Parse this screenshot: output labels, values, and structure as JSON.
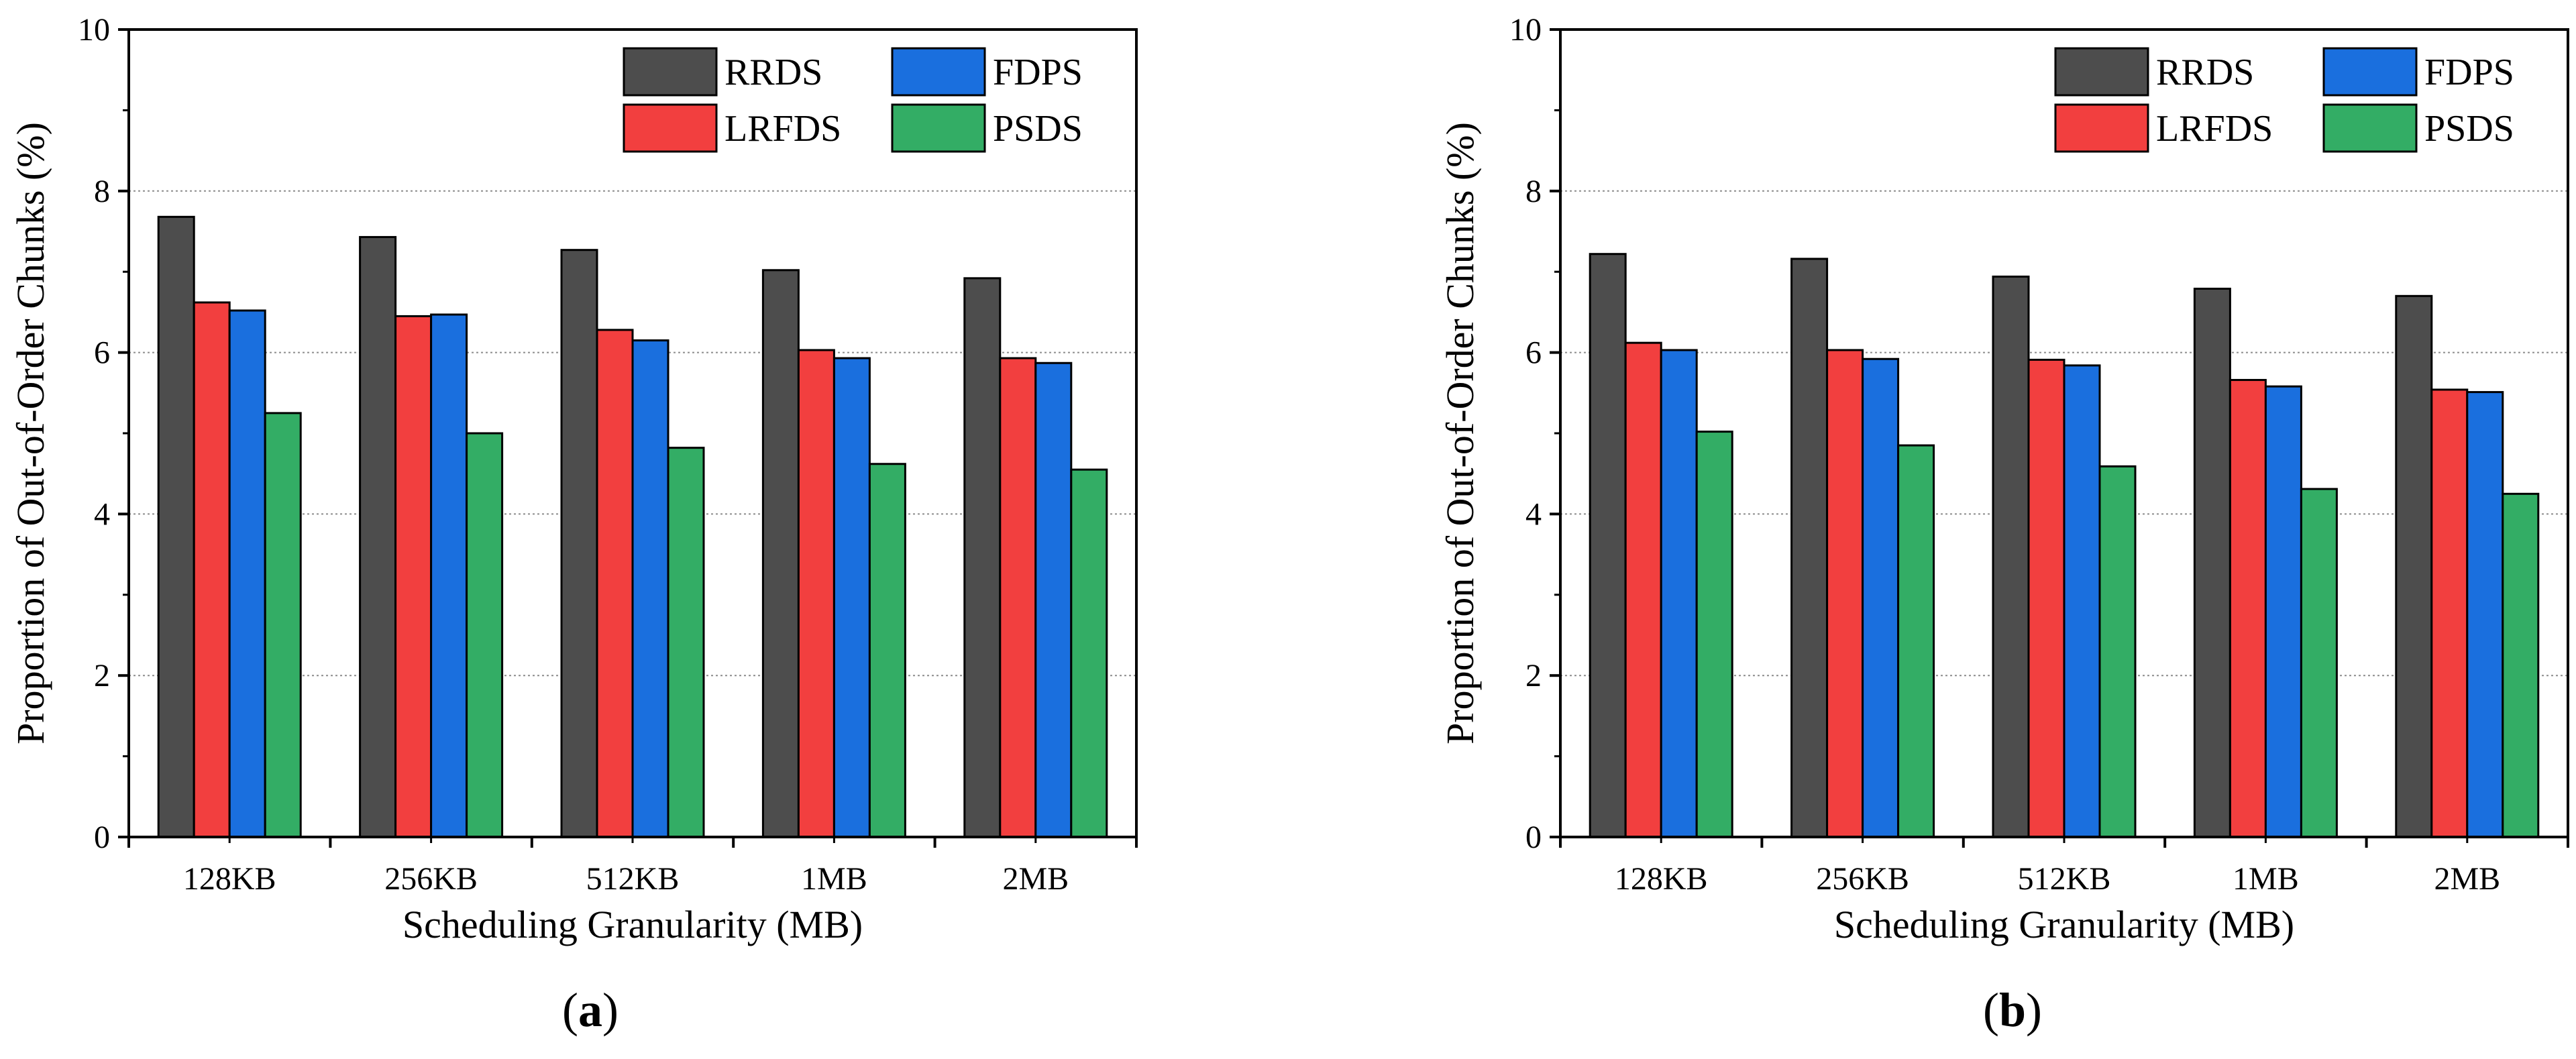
{
  "chart_data": [
    {
      "type": "bar",
      "panel_label": "a",
      "categories": [
        "128KB",
        "256KB",
        "512KB",
        "1MB",
        "2MB"
      ],
      "series": [
        {
          "name": "RRDS",
          "color": "#4d4d4d",
          "values": [
            7.68,
            7.43,
            7.27,
            7.02,
            6.92
          ]
        },
        {
          "name": "LRFDS",
          "color": "#f23f3f",
          "values": [
            6.62,
            6.45,
            6.28,
            6.03,
            5.93
          ]
        },
        {
          "name": "FDPS",
          "color": "#1a6fde",
          "values": [
            6.52,
            6.47,
            6.15,
            5.93,
            5.87
          ]
        },
        {
          "name": "PSDS",
          "color": "#33ad65",
          "values": [
            5.25,
            5.0,
            4.82,
            4.62,
            4.55
          ]
        }
      ],
      "xlabel": "Scheduling Granularity (MB)",
      "ylabel": "Proportion of Out-of-Order Chunks (%)",
      "ylim": [
        0,
        10
      ],
      "yticks": [
        0,
        2,
        4,
        6,
        8,
        10
      ],
      "grid": "horizontal dotted",
      "legend": "top-right, 2 columns"
    },
    {
      "type": "bar",
      "panel_label": "b",
      "categories": [
        "128KB",
        "256KB",
        "512KB",
        "1MB",
        "2MB"
      ],
      "series": [
        {
          "name": "RRDS",
          "color": "#4d4d4d",
          "values": [
            7.22,
            7.16,
            6.94,
            6.79,
            6.7
          ]
        },
        {
          "name": "LRFDS",
          "color": "#f23f3f",
          "values": [
            6.12,
            6.03,
            5.91,
            5.66,
            5.54
          ]
        },
        {
          "name": "FDPS",
          "color": "#1a6fde",
          "values": [
            6.03,
            5.92,
            5.84,
            5.58,
            5.51
          ]
        },
        {
          "name": "PSDS",
          "color": "#33ad65",
          "values": [
            5.02,
            4.85,
            4.59,
            4.31,
            4.25
          ]
        }
      ],
      "xlabel": "Scheduling Granularity (MB)",
      "ylabel": "Proportion of Out-of-Order Chunks (%)",
      "ylim": [
        0,
        10
      ],
      "yticks": [
        0,
        2,
        4,
        6,
        8,
        10
      ],
      "grid": "horizontal dotted",
      "legend": "top-right, 2 columns"
    }
  ]
}
